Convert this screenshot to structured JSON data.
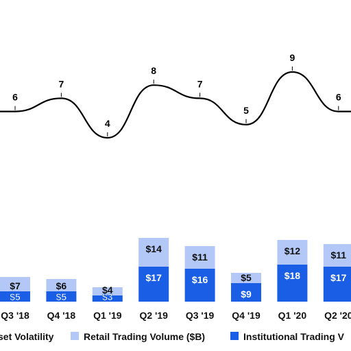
{
  "chart_data": {
    "type": "bar",
    "stacked": true,
    "categories": [
      "Q3 '18",
      "Q4 '18",
      "Q1 '19",
      "Q2 '19",
      "Q3 '19",
      "Q4 '19",
      "Q1 '20",
      "Q2 '20"
    ],
    "series": [
      {
        "name": "Institutional Trading Volume ($B)",
        "kind": "bar",
        "color": "#1a5ee6",
        "values": [
          5,
          5,
          3,
          17,
          16,
          9,
          18,
          17
        ],
        "value_labels": [
          "$5",
          "$5",
          "$3",
          "$17",
          "$16",
          "$9",
          "$18",
          "$17"
        ]
      },
      {
        "name": "Retail Trading Volume ($B)",
        "kind": "bar",
        "color": "#b3c8f7",
        "values": [
          7,
          6,
          4,
          14,
          11,
          5,
          12,
          11
        ],
        "value_labels": [
          "$7",
          "$6",
          "$4",
          "$14",
          "$11",
          "$5",
          "$12",
          "$11"
        ]
      },
      {
        "name": "Asset Volatility",
        "kind": "line",
        "color": "#000000",
        "values": [
          6,
          7,
          4,
          8,
          7,
          5,
          9,
          6
        ],
        "value_labels": [
          "6",
          "7",
          "4",
          "8",
          "7",
          "5",
          "9",
          "6"
        ]
      }
    ],
    "legend": {
      "position": "bottom",
      "items": [
        {
          "text": "set Volatility",
          "swatch": "line",
          "color": "#000000"
        },
        {
          "text": "Retail Trading Volume ($B)",
          "swatch": "square",
          "color": "#b3c8f7"
        },
        {
          "text": "Institutional Trading V",
          "swatch": "square",
          "color": "#1a5ee6"
        }
      ]
    },
    "grid": false
  }
}
